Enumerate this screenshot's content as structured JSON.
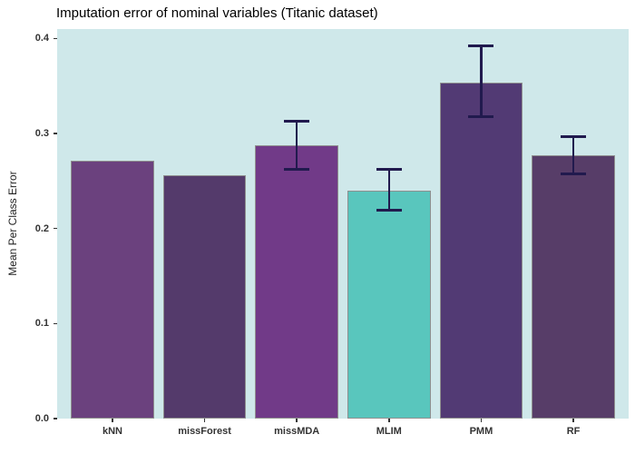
{
  "title": "Imputation error of nominal variables (Titanic dataset)",
  "chart_data": {
    "type": "bar",
    "title": "Imputation error of nominal variables (Titanic dataset)",
    "xlabel": "",
    "ylabel": "Mean Per Class Error",
    "categories": [
      "kNN",
      "missForest",
      "missMDA",
      "MLIM",
      "PMM",
      "RF"
    ],
    "values": [
      0.271,
      0.256,
      0.288,
      0.24,
      0.354,
      0.277
    ],
    "error_bars": [
      null,
      null,
      {
        "low": 0.262,
        "high": 0.313
      },
      {
        "low": 0.219,
        "high": 0.262
      },
      {
        "low": 0.318,
        "high": 0.392
      },
      {
        "low": 0.258,
        "high": 0.297
      }
    ],
    "bar_colors": [
      "#6B417E",
      "#543A6B",
      "#713A88",
      "#59C6BD",
      "#523A74",
      "#573D68"
    ],
    "bar_stroke": "#8f8f8f",
    "error_bar_color": "#211a4e",
    "panel_background": "#cfe8ea",
    "ylim": [
      0,
      0.41
    ],
    "yticks": [
      {
        "label": "0.0",
        "value": 0.0
      },
      {
        "label": "0.1",
        "value": 0.1
      },
      {
        "label": "0.2",
        "value": 0.2
      },
      {
        "label": "0.3",
        "value": 0.3
      },
      {
        "label": "0.4",
        "value": 0.4
      }
    ],
    "grid": false,
    "legend": "none"
  }
}
